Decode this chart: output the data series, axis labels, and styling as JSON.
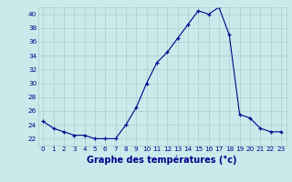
{
  "hours": [
    0,
    1,
    2,
    3,
    4,
    5,
    6,
    7,
    8,
    9,
    10,
    11,
    12,
    13,
    14,
    15,
    16,
    17,
    18,
    19,
    20,
    21,
    22,
    23
  ],
  "temperatures": [
    24.5,
    23.5,
    23.0,
    22.5,
    22.5,
    22.0,
    22.0,
    22.0,
    24.0,
    26.5,
    30.0,
    33.0,
    34.5,
    36.5,
    38.5,
    40.5,
    40.0,
    41.0,
    37.0,
    25.5,
    25.0,
    23.5,
    23.0,
    23.0
  ],
  "xlabel": "Graphe des températures (°c)",
  "ylim": [
    21,
    41
  ],
  "xlim": [
    -0.5,
    23.5
  ],
  "yticks": [
    22,
    24,
    26,
    28,
    30,
    32,
    34,
    36,
    38,
    40
  ],
  "xticks": [
    0,
    1,
    2,
    3,
    4,
    5,
    6,
    7,
    8,
    9,
    10,
    11,
    12,
    13,
    14,
    15,
    16,
    17,
    18,
    19,
    20,
    21,
    22,
    23
  ],
  "line_color": "#00008B",
  "marker": "+",
  "bg_color": "#c8eaea",
  "grid_color": "#aacccc",
  "xlabel_color": "#00008B",
  "xlabel_fontsize": 7.0,
  "tick_fontsize": 5.2
}
